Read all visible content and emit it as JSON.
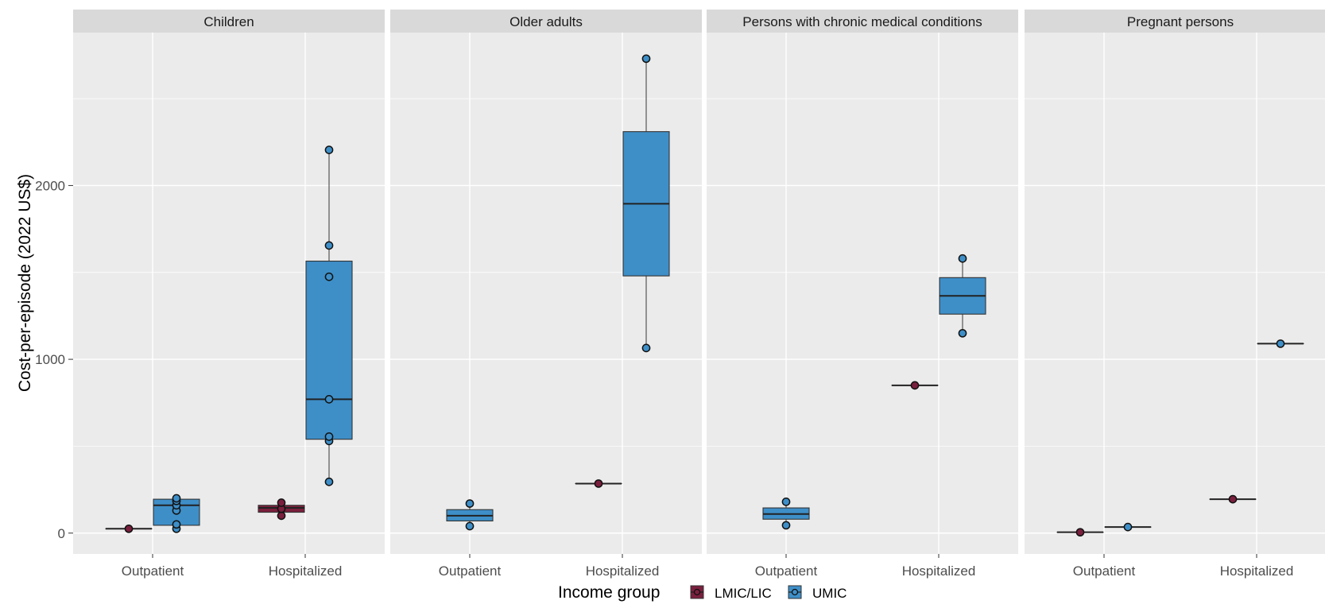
{
  "chart_data": {
    "type": "box",
    "ylabel": "Cost-per-episode (2022 US$)",
    "ylim": [
      -120,
      2880
    ],
    "yticks": [
      0,
      1000,
      2000
    ],
    "x_categories": [
      "Outpatient",
      "Hospitalized"
    ],
    "legend": {
      "title": "Income group",
      "position": "bottom",
      "entries": [
        {
          "name": "LMIC/LIC",
          "color": "#7a1f3d"
        },
        {
          "name": "UMIC",
          "color": "#3e8fc8"
        }
      ]
    },
    "colors": {
      "panel_bg": "#ebebeb",
      "strip_bg": "#d9d9d9",
      "grid": "#ffffff",
      "LMIC/LIC": "#7a1f3d",
      "UMIC": "#3e8fc8"
    },
    "panels": [
      {
        "title": "Children",
        "groups": [
          {
            "x": "Outpatient",
            "income": "LMIC/LIC",
            "box": {
              "q1": 25,
              "median": 25,
              "q3": 25,
              "whisker_low": 25,
              "whisker_high": 25
            },
            "points": [
              25
            ]
          },
          {
            "x": "Outpatient",
            "income": "UMIC",
            "box": {
              "q1": 45,
              "median": 160,
              "q3": 195,
              "whisker_low": 25,
              "whisker_high": 205
            },
            "points": [
              25,
              50,
              130,
              160,
              185,
              200
            ]
          },
          {
            "x": "Hospitalized",
            "income": "LMIC/LIC",
            "box": {
              "q1": 120,
              "median": 145,
              "q3": 160,
              "whisker_low": 100,
              "whisker_high": 180
            },
            "points": [
              100,
              140,
              175
            ]
          },
          {
            "x": "Hospitalized",
            "income": "UMIC",
            "box": {
              "q1": 540,
              "median": 770,
              "q3": 1565,
              "whisker_low": 295,
              "whisker_high": 2205
            },
            "points": [
              295,
              530,
              555,
              770,
              1475,
              1655,
              2205
            ]
          }
        ]
      },
      {
        "title": "Older adults",
        "groups": [
          {
            "x": "Outpatient",
            "income": "UMIC",
            "box": {
              "q1": 70,
              "median": 100,
              "q3": 135,
              "whisker_low": 40,
              "whisker_high": 170
            },
            "points": [
              40,
              170
            ]
          },
          {
            "x": "Hospitalized",
            "income": "LMIC/LIC",
            "box": {
              "q1": 285,
              "median": 285,
              "q3": 285,
              "whisker_low": 285,
              "whisker_high": 285
            },
            "points": [
              285
            ]
          },
          {
            "x": "Hospitalized",
            "income": "UMIC",
            "box": {
              "q1": 1480,
              "median": 1895,
              "q3": 2310,
              "whisker_low": 1065,
              "whisker_high": 2730
            },
            "points": [
              1065,
              2730
            ]
          }
        ]
      },
      {
        "title": "Persons with chronic medical conditions",
        "groups": [
          {
            "x": "Outpatient",
            "income": "UMIC",
            "box": {
              "q1": 80,
              "median": 110,
              "q3": 145,
              "whisker_low": 45,
              "whisker_high": 180
            },
            "points": [
              45,
              180
            ]
          },
          {
            "x": "Hospitalized",
            "income": "LMIC/LIC",
            "box": {
              "q1": 850,
              "median": 850,
              "q3": 850,
              "whisker_low": 850,
              "whisker_high": 850
            },
            "points": [
              850
            ]
          },
          {
            "x": "Hospitalized",
            "income": "UMIC",
            "box": {
              "q1": 1260,
              "median": 1365,
              "q3": 1470,
              "whisker_low": 1150,
              "whisker_high": 1580
            },
            "points": [
              1150,
              1580
            ]
          }
        ]
      },
      {
        "title": "Pregnant persons",
        "groups": [
          {
            "x": "Outpatient",
            "income": "LMIC/LIC",
            "box": {
              "q1": 5,
              "median": 5,
              "q3": 5,
              "whisker_low": 5,
              "whisker_high": 5
            },
            "points": [
              5
            ]
          },
          {
            "x": "Outpatient",
            "income": "UMIC",
            "box": {
              "q1": 35,
              "median": 35,
              "q3": 35,
              "whisker_low": 35,
              "whisker_high": 35
            },
            "points": [
              35
            ]
          },
          {
            "x": "Hospitalized",
            "income": "LMIC/LIC",
            "box": {
              "q1": 195,
              "median": 195,
              "q3": 195,
              "whisker_low": 195,
              "whisker_high": 195
            },
            "points": [
              195
            ]
          },
          {
            "x": "Hospitalized",
            "income": "UMIC",
            "box": {
              "q1": 1090,
              "median": 1090,
              "q3": 1090,
              "whisker_low": 1090,
              "whisker_high": 1090
            },
            "points": [
              1090
            ]
          }
        ]
      }
    ]
  }
}
